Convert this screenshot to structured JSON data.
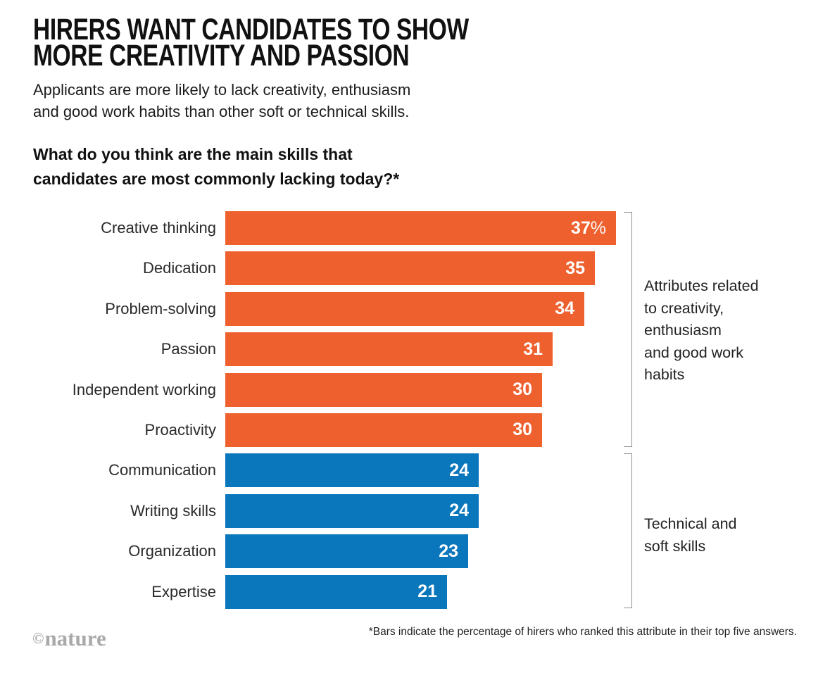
{
  "header": {
    "title": "HIRERS WANT CANDIDATES TO SHOW\nMORE CREATIVITY AND PASSION",
    "subtitle": "Applicants are more likely to lack creativity, enthusiasm\nand good work habits than other soft or technical skills."
  },
  "question": "What do you think are the main skills that\ncandidates are most commonly lacking today?*",
  "chart_data": {
    "type": "bar",
    "orientation": "horizontal",
    "title": "What do you think are the main skills that candidates are most commonly lacking today?*",
    "xlim": [
      0,
      37
    ],
    "value_unit": "percentage of hirers",
    "grid": false,
    "legend_position": "right-brackets",
    "categories": [
      "Creative thinking",
      "Dedication",
      "Problem-solving",
      "Passion",
      "Independent working",
      "Proactivity",
      "Communication",
      "Writing skills",
      "Organization",
      "Expertise"
    ],
    "values": [
      37,
      35,
      34,
      31,
      30,
      30,
      24,
      24,
      23,
      21
    ],
    "rows": [
      {
        "label": "Creative thinking",
        "value": 37,
        "value_label": "37",
        "value_suffix": "%",
        "group": "creativity"
      },
      {
        "label": "Dedication",
        "value": 35,
        "value_label": "35",
        "value_suffix": "",
        "group": "creativity"
      },
      {
        "label": "Problem-solving",
        "value": 34,
        "value_label": "34",
        "value_suffix": "",
        "group": "creativity"
      },
      {
        "label": "Passion",
        "value": 31,
        "value_label": "31",
        "value_suffix": "",
        "group": "creativity"
      },
      {
        "label": "Independent working",
        "value": 30,
        "value_label": "30",
        "value_suffix": "",
        "group": "creativity"
      },
      {
        "label": "Proactivity",
        "value": 30,
        "value_label": "30",
        "value_suffix": "",
        "group": "creativity"
      },
      {
        "label": "Communication",
        "value": 24,
        "value_label": "24",
        "value_suffix": "",
        "group": "technical"
      },
      {
        "label": "Writing skills",
        "value": 24,
        "value_label": "24",
        "value_suffix": "",
        "group": "technical"
      },
      {
        "label": "Organization",
        "value": 23,
        "value_label": "23",
        "value_suffix": "",
        "group": "technical"
      },
      {
        "label": "Expertise",
        "value": 21,
        "value_label": "21",
        "value_suffix": "",
        "group": "technical"
      }
    ],
    "groups": {
      "creativity": {
        "color": "#EE612E",
        "label": "Attributes related\nto creativity,\nenthusiasm\nand good work\nhabits"
      },
      "technical": {
        "color": "#0A76BC",
        "label": "Technical and\nsoft skills"
      }
    }
  },
  "footer": {
    "credit_symbol": "©",
    "credit_word": "nature",
    "footnote": "*Bars indicate the percentage of hirers who ranked this attribute in their top five answers."
  }
}
